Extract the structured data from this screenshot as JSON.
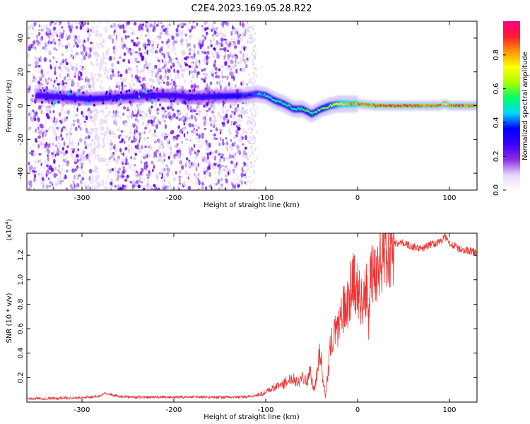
{
  "figure": {
    "title": "C2E4.2023.169.05.28.R22"
  },
  "chart_data": [
    {
      "type": "heatmap",
      "xlabel": "Height of straight line (km)",
      "ylabel": "Frequency (Hz)",
      "xlim": [
        -360,
        130
      ],
      "ylim": [
        -50,
        50
      ],
      "x_ticks": [
        -300,
        -200,
        -100,
        0,
        100
      ],
      "y_ticks": [
        -40,
        -20,
        0,
        20,
        40
      ],
      "x_tick_labels": [
        "-300",
        "-200",
        "-100",
        "0",
        "100"
      ],
      "y_tick_labels": [
        "-40",
        "-20",
        "0",
        "20",
        "40"
      ],
      "grid": false,
      "colorbar": {
        "label": "Normalized spectral amplitude",
        "range": [
          0,
          1
        ],
        "ticks": [
          0.0,
          0.2,
          0.4,
          0.6,
          0.8
        ],
        "tick_labels": [
          "0.0",
          "0.2",
          "0.4",
          "0.6",
          "0.8"
        ],
        "colormap": [
          "#ffffff",
          "#e6d5ff",
          "#8a2be2",
          "#3a00ff",
          "#0000ff",
          "#00d8ff",
          "#00ff66",
          "#a8ff00",
          "#ffff00",
          "#ff9900",
          "#ff1a33",
          "#ff0080"
        ]
      },
      "ridge": {
        "x": [
          -350,
          -320,
          -290,
          -260,
          -230,
          -200,
          -180,
          -120,
          -110,
          -100,
          -90,
          -80,
          -70,
          -60,
          -50,
          -40,
          -30,
          -20,
          -10,
          0,
          20,
          50,
          80,
          90,
          95,
          100,
          130
        ],
        "y": [
          6,
          5,
          4,
          5,
          6,
          6,
          5,
          6,
          7,
          6,
          3,
          1,
          -2,
          -2,
          -5,
          -2,
          0,
          1,
          1,
          1,
          0,
          0,
          0,
          0,
          1,
          0,
          0
        ],
        "amplitude": [
          0.3,
          0.3,
          0.35,
          0.3,
          0.3,
          0.3,
          0.3,
          0.4,
          0.45,
          0.5,
          0.55,
          0.55,
          0.55,
          0.6,
          0.6,
          0.65,
          0.7,
          0.8,
          0.85,
          0.9,
          0.95,
          0.95,
          0.9,
          0.9,
          0.75,
          0.9,
          0.9
        ]
      }
    },
    {
      "type": "line",
      "xlabel": "Height of straight line (km)",
      "ylabel": "SNR (10 * v/v)",
      "y_multiplier_label": "(x10",
      "y_multiplier_exp": "4",
      "xlim": [
        -360,
        130
      ],
      "ylim": [
        0,
        13800
      ],
      "x_ticks": [
        -300,
        -200,
        -100,
        0,
        100
      ],
      "y_ticks": [
        2000,
        4000,
        6000,
        8000,
        10000,
        12000
      ],
      "x_tick_labels": [
        "-300",
        "-200",
        "-100",
        "0",
        "100"
      ],
      "y_tick_labels": [
        "0.2",
        "0.4",
        "0.6",
        "0.8",
        "1.0",
        "1.2"
      ],
      "grid": false,
      "series": [
        {
          "color": "#ee3333",
          "x": [
            -360,
            -340,
            -320,
            -300,
            -280,
            -275,
            -270,
            -260,
            -240,
            -220,
            -200,
            -180,
            -160,
            -140,
            -120,
            -110,
            -100,
            -95,
            -90,
            -85,
            -80,
            -75,
            -70,
            -65,
            -60,
            -55,
            -52,
            -48,
            -45,
            -42,
            -40,
            -38,
            -35,
            -32,
            -30,
            -27,
            -25,
            -22,
            -20,
            -18,
            -15,
            -12,
            -10,
            -7,
            -5,
            -3,
            0,
            3,
            5,
            8,
            10,
            12,
            13,
            15,
            18,
            20,
            25,
            30,
            35,
            40,
            50,
            60,
            70,
            80,
            90,
            95,
            98,
            100,
            105,
            110,
            120,
            130
          ],
          "y": [
            300,
            300,
            330,
            350,
            500,
            800,
            650,
            450,
            400,
            400,
            400,
            420,
            400,
            400,
            420,
            550,
            800,
            1000,
            1200,
            1400,
            1500,
            1800,
            2000,
            1600,
            2200,
            1700,
            2600,
            1000,
            1800,
            4000,
            3800,
            2000,
            400,
            2500,
            4500,
            5000,
            5500,
            6000,
            6500,
            7200,
            7500,
            7800,
            8500,
            9200,
            10300,
            10200,
            9000,
            8600,
            8500,
            9000,
            8800,
            6300,
            9800,
            10000,
            10500,
            10800,
            11500,
            12000,
            12600,
            13000,
            13000,
            12700,
            12500,
            12900,
            13100,
            13500,
            13200,
            13000,
            12800,
            12500,
            12400,
            12200
          ]
        }
      ]
    }
  ]
}
